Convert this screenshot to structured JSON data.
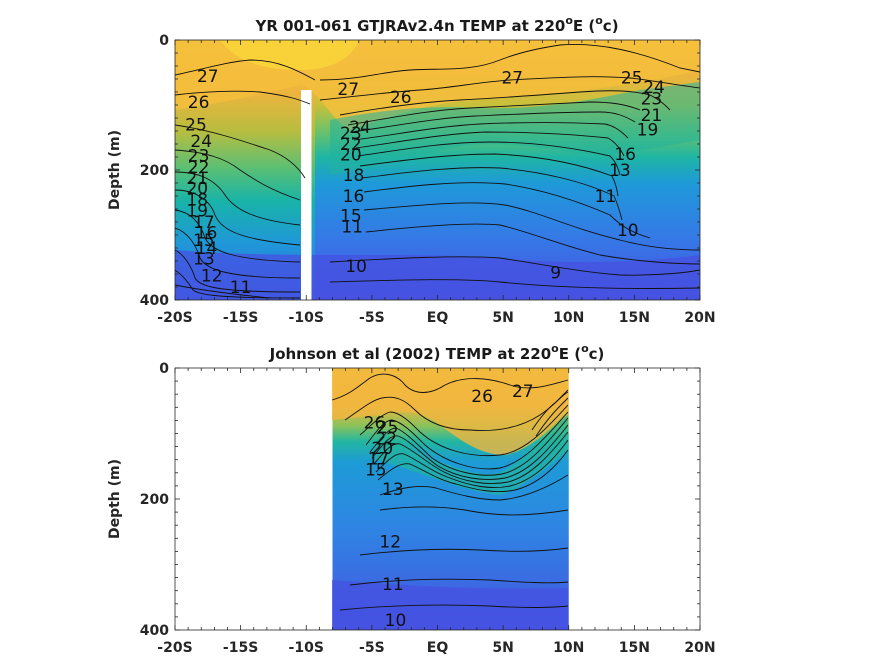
{
  "chart_data": [
    {
      "type": "heatmap",
      "title_main": "YR 001-061 GTJRAv2.4n TEMP at 220",
      "title_sup": "o",
      "title_mid": "E (",
      "title_sup2": "o",
      "title_end": "c)",
      "ylabel": "Depth (m)",
      "x_ticks": [
        "-20S",
        "-15S",
        "-10S",
        "-5S",
        "EQ",
        "5N",
        "10N",
        "15N",
        "20N"
      ],
      "x_tick_values": [
        -20,
        -15,
        -10,
        -5,
        0,
        5,
        10,
        15,
        20
      ],
      "y_ticks": [
        "0",
        "200",
        "400"
      ],
      "y_tick_values": [
        0,
        200,
        400
      ],
      "xlim": [
        -20,
        20
      ],
      "ylim": [
        0,
        400
      ],
      "data_xlim": [
        -20,
        20
      ],
      "missing_band": [
        -10.4,
        -9.6
      ],
      "contour_labels": [
        {
          "text": "27",
          "x": -17.5,
          "y": 55
        },
        {
          "text": "26",
          "x": -18.2,
          "y": 95
        },
        {
          "text": "25",
          "x": -18.4,
          "y": 130
        },
        {
          "text": "24",
          "x": -18.0,
          "y": 155
        },
        {
          "text": "23",
          "x": -18.2,
          "y": 178
        },
        {
          "text": "22",
          "x": -18.2,
          "y": 195
        },
        {
          "text": "21",
          "x": -18.3,
          "y": 212
        },
        {
          "text": "20",
          "x": -18.3,
          "y": 228
        },
        {
          "text": "19",
          "x": -18.3,
          "y": 262
        },
        {
          "text": "18",
          "x": -18.3,
          "y": 245
        },
        {
          "text": "17",
          "x": -17.8,
          "y": 280
        },
        {
          "text": "16",
          "x": -17.6,
          "y": 296
        },
        {
          "text": "15",
          "x": -17.8,
          "y": 308
        },
        {
          "text": "14",
          "x": -17.6,
          "y": 320
        },
        {
          "text": "13",
          "x": -17.8,
          "y": 336
        },
        {
          "text": "12",
          "x": -17.2,
          "y": 362
        },
        {
          "text": "11",
          "x": -15.0,
          "y": 380
        },
        {
          "text": "27",
          "x": -6.8,
          "y": 75
        },
        {
          "text": "26",
          "x": -2.8,
          "y": 88
        },
        {
          "text": "24",
          "x": -5.9,
          "y": 134
        },
        {
          "text": "23",
          "x": -6.6,
          "y": 143
        },
        {
          "text": "22",
          "x": -6.6,
          "y": 160
        },
        {
          "text": "20",
          "x": -6.6,
          "y": 176
        },
        {
          "text": "18",
          "x": -6.4,
          "y": 208
        },
        {
          "text": "16",
          "x": -6.4,
          "y": 240
        },
        {
          "text": "15",
          "x": -6.6,
          "y": 270
        },
        {
          "text": "11",
          "x": -6.5,
          "y": 287
        },
        {
          "text": "10",
          "x": -6.2,
          "y": 348
        },
        {
          "text": "27",
          "x": 5.7,
          "y": 58
        },
        {
          "text": "25",
          "x": 14.8,
          "y": 58
        },
        {
          "text": "24",
          "x": 16.5,
          "y": 72
        },
        {
          "text": "23",
          "x": 16.3,
          "y": 90
        },
        {
          "text": "21",
          "x": 16.3,
          "y": 115
        },
        {
          "text": "19",
          "x": 16.0,
          "y": 138
        },
        {
          "text": "16",
          "x": 14.3,
          "y": 175
        },
        {
          "text": "13",
          "x": 13.9,
          "y": 200
        },
        {
          "text": "11",
          "x": 12.8,
          "y": 240
        },
        {
          "text": "10",
          "x": 14.5,
          "y": 292
        },
        {
          "text": "9",
          "x": 9.0,
          "y": 358
        }
      ]
    },
    {
      "type": "heatmap",
      "title_main": "Johnson et al (2002) TEMP at 220",
      "title_sup": "o",
      "title_mid": "E (",
      "title_sup2": "o",
      "title_end": "c)",
      "ylabel": "Depth (m)",
      "x_ticks": [
        "-20S",
        "-15S",
        "-10S",
        "-5S",
        "EQ",
        "5N",
        "10N",
        "15N",
        "20N"
      ],
      "x_tick_values": [
        -20,
        -15,
        -10,
        -5,
        0,
        5,
        10,
        15,
        20
      ],
      "y_ticks": [
        "0",
        "200",
        "400"
      ],
      "y_tick_values": [
        0,
        200,
        400
      ],
      "xlim": [
        -20,
        20
      ],
      "ylim": [
        0,
        400
      ],
      "data_xlim": [
        -8,
        10
      ],
      "contour_labels": [
        {
          "text": "26",
          "x": -4.8,
          "y": 83
        },
        {
          "text": "27",
          "x": 6.5,
          "y": 35
        },
        {
          "text": "26",
          "x": 3.4,
          "y": 43
        },
        {
          "text": "25",
          "x": -3.8,
          "y": 90
        },
        {
          "text": "22",
          "x": -3.9,
          "y": 108
        },
        {
          "text": "20",
          "x": -4.2,
          "y": 122
        },
        {
          "text": "17",
          "x": -4.5,
          "y": 138
        },
        {
          "text": "15",
          "x": -4.7,
          "y": 155
        },
        {
          "text": "13",
          "x": -3.4,
          "y": 185
        },
        {
          "text": "12",
          "x": -3.6,
          "y": 265
        },
        {
          "text": "11",
          "x": -3.4,
          "y": 330
        },
        {
          "text": "10",
          "x": -3.2,
          "y": 385
        }
      ]
    }
  ]
}
